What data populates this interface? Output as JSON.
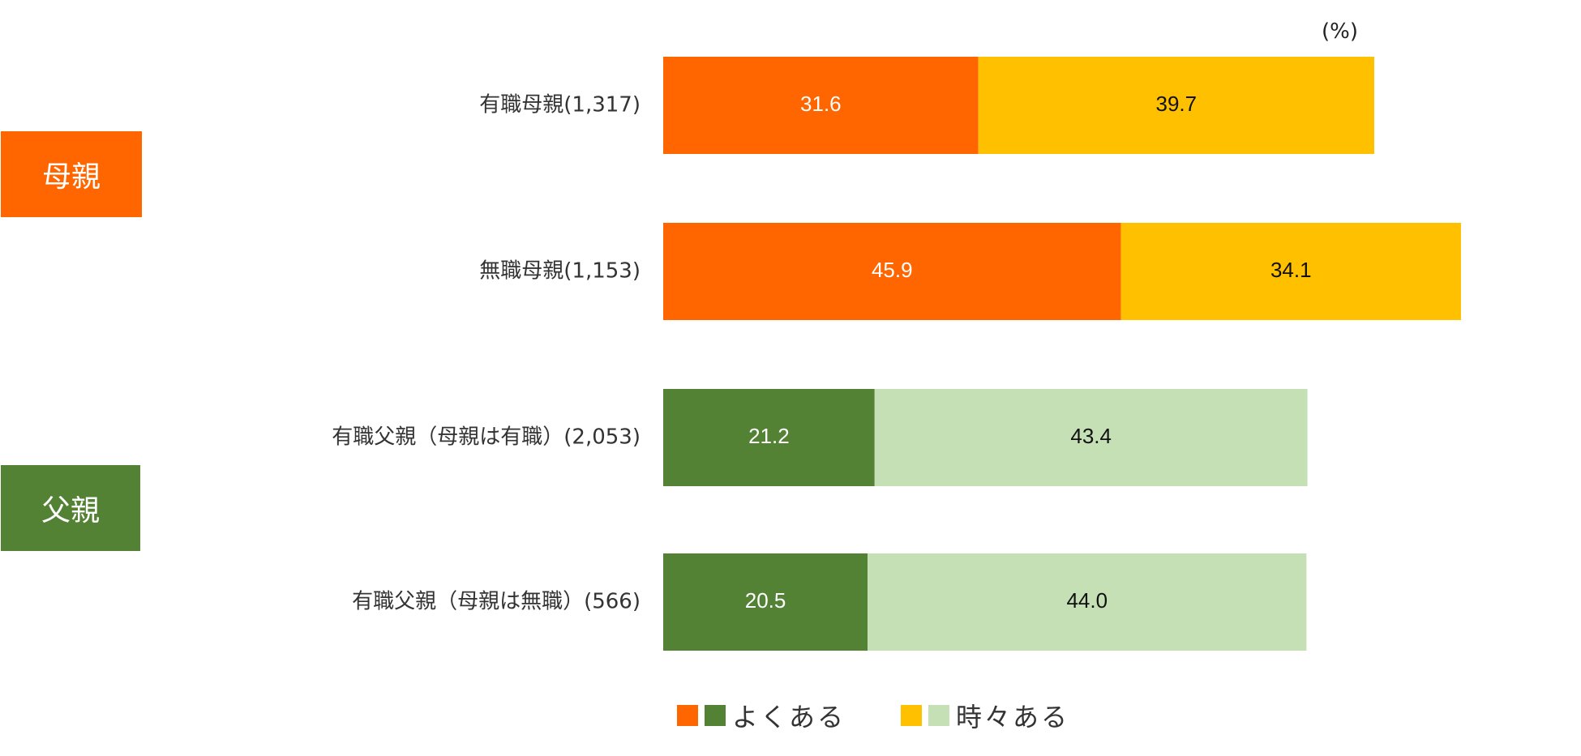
{
  "chart_data": {
    "type": "bar",
    "orientation": "horizontal",
    "stacked": true,
    "unit": "(%)",
    "categories": [
      "有職母親(1,317)",
      "無職母親(1,153)",
      "有職父親（母親は有職）(2,053)",
      "有職父親（母親は無職）(566)"
    ],
    "groups": [
      {
        "label": "母親",
        "color": "#FF6600"
      },
      {
        "label": "父親",
        "color": "#548235"
      }
    ],
    "series": [
      {
        "name": "よくある",
        "values": [
          31.6,
          45.9,
          21.2,
          20.5
        ],
        "colors": [
          "#FF6600",
          "#FF6600",
          "#548235",
          "#548235"
        ]
      },
      {
        "name": "時々ある",
        "values": [
          39.7,
          34.1,
          43.4,
          44.0
        ],
        "colors": [
          "#FFC000",
          "#FFC000",
          "#C5E0B4",
          "#C5E0B4"
        ]
      }
    ],
    "xlim": [
      0,
      100
    ],
    "grid": false,
    "legend_position": "bottom"
  }
}
